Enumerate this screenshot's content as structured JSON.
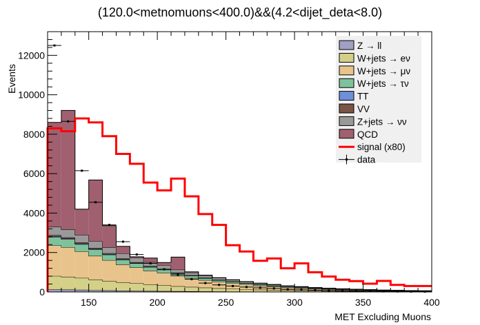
{
  "chart_data": {
    "type": "histogram-stacked",
    "title": "(120.0<metnomuons<400.0)&&(4.2<dijet_deta<8.0)",
    "xlabel": "MET Excluding Muons",
    "ylabel": "Events",
    "xlim": [
      120,
      400
    ],
    "ylim": [
      0,
      13200
    ],
    "x_ticks": [
      150,
      200,
      250,
      300,
      350,
      400
    ],
    "y_ticks": [
      0,
      2000,
      4000,
      6000,
      8000,
      10000,
      12000
    ],
    "bin_edges": [
      120,
      130,
      140,
      150,
      160,
      170,
      180,
      190,
      200,
      210,
      220,
      230,
      240,
      250,
      260,
      270,
      280,
      290,
      300,
      310,
      320,
      330,
      340,
      350,
      360,
      370,
      380,
      390,
      400
    ],
    "stack": [
      {
        "name": "Z → ll",
        "color": "#a0a0c4",
        "values": [
          130,
          120,
          110,
          90,
          80,
          70,
          60,
          50,
          45,
          40,
          35,
          30,
          25,
          20,
          18,
          15,
          12,
          10,
          8,
          7,
          6,
          5,
          4,
          4,
          3,
          3,
          2,
          2
        ]
      },
      {
        "name": "W+jets → eν",
        "color": "#d4d088",
        "values": [
          680,
          650,
          600,
          540,
          480,
          420,
          380,
          330,
          300,
          250,
          220,
          190,
          160,
          140,
          120,
          100,
          85,
          70,
          60,
          50,
          42,
          35,
          30,
          25,
          20,
          18,
          15,
          12
        ]
      },
      {
        "name": "W+jets → μν",
        "color": "#e8c48c",
        "values": [
          1550,
          1500,
          1350,
          1200,
          1050,
          900,
          800,
          700,
          620,
          520,
          450,
          380,
          330,
          280,
          240,
          200,
          170,
          140,
          120,
          100,
          85,
          70,
          60,
          50,
          42,
          35,
          30,
          25
        ]
      },
      {
        "name": "W+jets → τν",
        "color": "#7ec29c",
        "values": [
          420,
          400,
          360,
          320,
          280,
          240,
          210,
          180,
          160,
          130,
          110,
          95,
          80,
          70,
          60,
          50,
          42,
          36,
          30,
          25,
          21,
          18,
          15,
          12,
          10,
          8,
          7,
          6
        ]
      },
      {
        "name": "TT",
        "color": "#6f90d8",
        "values": [
          40,
          38,
          35,
          30,
          28,
          25,
          22,
          20,
          18,
          15,
          13,
          11,
          10,
          8,
          7,
          6,
          5,
          4,
          4,
          3,
          3,
          2,
          2,
          2,
          1,
          1,
          1,
          1
        ]
      },
      {
        "name": "VV",
        "color": "#7a5446",
        "values": [
          60,
          58,
          55,
          50,
          45,
          40,
          35,
          32,
          28,
          25,
          22,
          19,
          16,
          14,
          12,
          10,
          9,
          8,
          7,
          6,
          5,
          4,
          4,
          3,
          3,
          2,
          2,
          2
        ]
      },
      {
        "name": "Z+jets → νν",
        "color": "#999999",
        "values": [
          420,
          400,
          380,
          340,
          300,
          260,
          230,
          200,
          180,
          150,
          130,
          110,
          95,
          80,
          68,
          58,
          50,
          42,
          36,
          30,
          26,
          22,
          18,
          15,
          12,
          10,
          8,
          7
        ]
      },
      {
        "name": "QCD",
        "color": "#a06070",
        "values": [
          5300,
          6040,
          1310,
          3110,
          1100,
          360,
          50,
          210,
          140,
          640,
          40,
          15,
          10,
          10,
          5,
          5,
          5,
          5,
          5,
          5,
          5,
          5,
          5,
          5,
          5,
          5,
          5,
          5
        ]
      }
    ],
    "signal": {
      "name": "signal (x80)",
      "color": "#ff0000",
      "values": [
        8300,
        8150,
        8800,
        8600,
        7900,
        7000,
        6500,
        5550,
        5150,
        5750,
        4850,
        3950,
        3400,
        2370,
        2050,
        1580,
        1700,
        1200,
        1450,
        1000,
        780,
        620,
        550,
        420,
        560,
        360,
        300,
        300
      ]
    },
    "data": {
      "name": "data",
      "x": [
        125,
        135,
        145,
        155,
        165,
        175,
        185,
        195,
        205,
        215,
        225,
        235,
        245,
        255,
        265,
        275,
        285,
        295,
        305,
        315,
        325,
        335,
        345,
        355,
        365,
        375,
        385,
        395
      ],
      "y": [
        12500,
        8650,
        6150,
        4550,
        3400,
        2550,
        1900,
        1450,
        1150,
        870,
        650,
        450,
        360,
        300,
        250,
        210,
        180,
        130,
        110,
        90,
        70,
        60,
        50,
        40,
        30,
        25,
        20,
        18
      ]
    },
    "legend": {
      "placement": "top-right"
    }
  }
}
